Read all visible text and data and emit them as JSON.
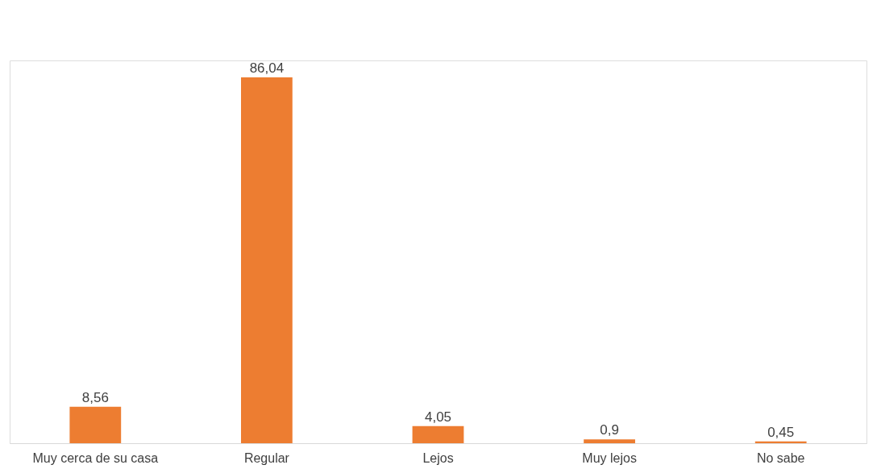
{
  "chart_data": {
    "type": "bar",
    "categories": [
      "Muy cerca de su casa",
      "Regular",
      "Lejos",
      "Muy lejos",
      "No sabe"
    ],
    "values": [
      8.56,
      86.04,
      4.05,
      0.9,
      0.45
    ],
    "value_labels": [
      "8,56",
      "86,04",
      "4,05",
      "0,9",
      "0,45"
    ],
    "color": "#ed7d31",
    "grid": false
  }
}
